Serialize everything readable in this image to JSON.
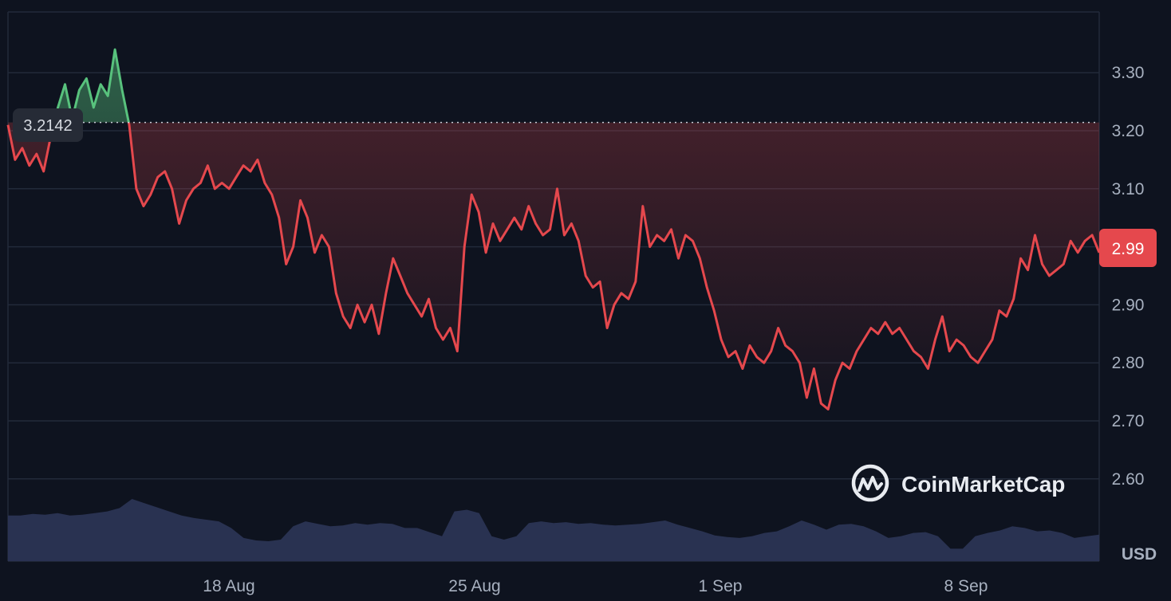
{
  "chart_data": {
    "type": "area",
    "currency": "USD",
    "reference_value": "3.2142",
    "current_price": "2.99",
    "x_ticks": [
      "18 Aug",
      "25 Aug",
      "1 Sep",
      "8 Sep"
    ],
    "y_ticks": [
      "3.30",
      "3.20",
      "3.10",
      "3.00",
      "2.90",
      "2.80",
      "2.70",
      "2.60"
    ],
    "ylim": [
      2.54,
      3.39
    ],
    "grid": true,
    "colors": {
      "above_reference": "#58c27d",
      "below_reference": "#e5484d",
      "volume_fill": "#2b3454",
      "price_badge": "#e5484d"
    },
    "series": [
      {
        "values": [
          3.21,
          3.15,
          3.17,
          3.14,
          3.16,
          3.13,
          3.19,
          3.24,
          3.28,
          3.22,
          3.27,
          3.29,
          3.24,
          3.28,
          3.26,
          3.34,
          3.27,
          3.21,
          3.1,
          3.07,
          3.09,
          3.12,
          3.13,
          3.1,
          3.04,
          3.08,
          3.1,
          3.11,
          3.14,
          3.1,
          3.11,
          3.1,
          3.12,
          3.14,
          3.13,
          3.15,
          3.11,
          3.09,
          3.05,
          2.97,
          3.0,
          3.08,
          3.05,
          2.99,
          3.02,
          3.0,
          2.92,
          2.88,
          2.86,
          2.9,
          2.87,
          2.9,
          2.85,
          2.92,
          2.98,
          2.95,
          2.92,
          2.9,
          2.88,
          2.91,
          2.86,
          2.84,
          2.86,
          2.82,
          3.0,
          3.09,
          3.06,
          2.99,
          3.04,
          3.01,
          3.03,
          3.05,
          3.03,
          3.07,
          3.04,
          3.02,
          3.03,
          3.1,
          3.02,
          3.04,
          3.01,
          2.95,
          2.93,
          2.94,
          2.86,
          2.9,
          2.92,
          2.91,
          2.94,
          3.07,
          3.0,
          3.02,
          3.01,
          3.03,
          2.98,
          3.02,
          3.01,
          2.98,
          2.93,
          2.89,
          2.84,
          2.81,
          2.82,
          2.79,
          2.83,
          2.81,
          2.8,
          2.82,
          2.86,
          2.83,
          2.82,
          2.8,
          2.74,
          2.79,
          2.73,
          2.72,
          2.77,
          2.8,
          2.79,
          2.82,
          2.84,
          2.86,
          2.85,
          2.87,
          2.85,
          2.86,
          2.84,
          2.82,
          2.81,
          2.79,
          2.84,
          2.88,
          2.82,
          2.84,
          2.83,
          2.81,
          2.8,
          2.82,
          2.84,
          2.89,
          2.88,
          2.91,
          2.98,
          2.96,
          3.02,
          2.97,
          2.95,
          2.96,
          2.97,
          3.01,
          2.99,
          3.01,
          3.02,
          2.99
        ]
      }
    ],
    "volume_values": [
      0.55,
      0.55,
      0.57,
      0.56,
      0.58,
      0.55,
      0.56,
      0.58,
      0.6,
      0.64,
      0.75,
      0.7,
      0.65,
      0.6,
      0.55,
      0.52,
      0.5,
      0.48,
      0.4,
      0.28,
      0.25,
      0.24,
      0.26,
      0.42,
      0.48,
      0.45,
      0.42,
      0.43,
      0.46,
      0.44,
      0.46,
      0.45,
      0.4,
      0.4,
      0.35,
      0.3,
      0.6,
      0.62,
      0.58,
      0.3,
      0.26,
      0.3,
      0.46,
      0.48,
      0.46,
      0.47,
      0.45,
      0.46,
      0.44,
      0.43,
      0.44,
      0.45,
      0.47,
      0.49,
      0.44,
      0.4,
      0.36,
      0.31,
      0.29,
      0.28,
      0.3,
      0.34,
      0.36,
      0.42,
      0.49,
      0.44,
      0.38,
      0.44,
      0.45,
      0.42,
      0.36,
      0.28,
      0.3,
      0.34,
      0.35,
      0.3,
      0.15,
      0.15,
      0.3,
      0.34,
      0.37,
      0.42,
      0.4,
      0.36,
      0.37,
      0.34,
      0.28,
      0.3,
      0.32
    ]
  },
  "watermark": {
    "brand": "CoinMarketCap",
    "icon": "coinmarketcap-logo-icon"
  }
}
